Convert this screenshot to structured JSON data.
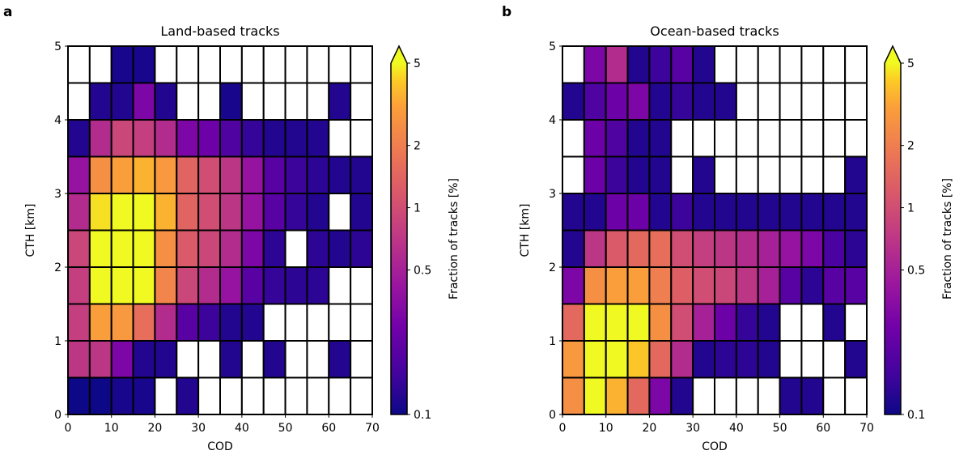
{
  "chart_data": [
    {
      "type": "heatmap",
      "panel_letter": "a",
      "title": "Land-based tracks",
      "xlabel": "COD",
      "ylabel": "CTH [km]",
      "xlim": [
        0,
        70
      ],
      "ylim": [
        0,
        5
      ],
      "x_ticks": [
        0,
        10,
        20,
        30,
        40,
        50,
        60,
        70
      ],
      "y_ticks": [
        0,
        1,
        2,
        3,
        4,
        5
      ],
      "x_bin_edges": [
        0,
        5,
        10,
        15,
        20,
        25,
        30,
        35,
        40,
        45,
        50,
        55,
        60,
        65,
        70
      ],
      "y_bin_edges": [
        0,
        0.5,
        1,
        1.5,
        2,
        2.5,
        3,
        3.5,
        4,
        4.5,
        5
      ],
      "empty_value": null,
      "colorbar": {
        "label": "Fraction of tracks [%]",
        "scale": "log",
        "range": [
          0.1,
          5
        ],
        "ticks": [
          0.1,
          0.5,
          1,
          2,
          5
        ],
        "extend": "max",
        "colormap": "plasma"
      },
      "values": [
        [
          0.1,
          0.1,
          0.11,
          0.11,
          null,
          0.12,
          null,
          null,
          null,
          null,
          null,
          null,
          null,
          null
        ],
        [
          0.7,
          0.7,
          0.3,
          0.12,
          0.12,
          null,
          null,
          0.12,
          null,
          0.12,
          null,
          null,
          0.12,
          null
        ],
        [
          0.8,
          3.0,
          2.8,
          1.6,
          0.6,
          0.2,
          0.15,
          0.12,
          0.12,
          null,
          null,
          null,
          null,
          null
        ],
        [
          0.8,
          5.5,
          7.0,
          7.0,
          2.2,
          0.9,
          0.6,
          0.4,
          0.2,
          0.14,
          0.13,
          0.13,
          null,
          null
        ],
        [
          0.9,
          5.0,
          6.0,
          5.0,
          2.5,
          1.2,
          0.9,
          0.6,
          0.3,
          0.13,
          null,
          0.13,
          0.12,
          0.13
        ],
        [
          0.6,
          4.5,
          6.0,
          6.0,
          3.5,
          1.4,
          1.0,
          0.7,
          0.4,
          0.2,
          0.14,
          0.12,
          null,
          0.12
        ],
        [
          0.4,
          2.5,
          3.0,
          3.5,
          2.8,
          1.4,
          1.0,
          0.7,
          0.4,
          0.2,
          0.15,
          0.13,
          0.12,
          0.12
        ],
        [
          0.12,
          0.6,
          0.9,
          0.8,
          0.6,
          0.3,
          0.25,
          0.18,
          0.14,
          0.12,
          0.12,
          0.12,
          null,
          null
        ],
        [
          null,
          0.12,
          0.12,
          0.3,
          0.12,
          null,
          null,
          0.11,
          null,
          null,
          null,
          null,
          0.12,
          null
        ],
        [
          null,
          null,
          0.11,
          0.11,
          null,
          null,
          null,
          null,
          null,
          null,
          null,
          null,
          null,
          null
        ]
      ]
    },
    {
      "type": "heatmap",
      "panel_letter": "b",
      "title": "Ocean-based tracks",
      "xlabel": "COD",
      "ylabel": "CTH [km]",
      "xlim": [
        0,
        70
      ],
      "ylim": [
        0,
        5
      ],
      "x_ticks": [
        0,
        10,
        20,
        30,
        40,
        50,
        60,
        70
      ],
      "y_ticks": [
        0,
        1,
        2,
        3,
        4,
        5
      ],
      "x_bin_edges": [
        0,
        5,
        10,
        15,
        20,
        25,
        30,
        35,
        40,
        45,
        50,
        55,
        60,
        65,
        70
      ],
      "y_bin_edges": [
        0,
        0.5,
        1,
        1.5,
        2,
        2.5,
        3,
        3.5,
        4,
        4.5,
        5
      ],
      "empty_value": null,
      "colorbar": {
        "label": "Fraction of tracks [%]",
        "scale": "log",
        "range": [
          0.1,
          5
        ],
        "ticks": [
          0.1,
          0.5,
          1,
          2,
          5
        ],
        "extend": "max",
        "colormap": "plasma"
      },
      "values": [
        [
          2.5,
          5.0,
          3.5,
          1.5,
          0.3,
          0.12,
          null,
          null,
          null,
          null,
          0.12,
          0.12,
          null,
          null
        ],
        [
          2.8,
          6.0,
          5.0,
          4.0,
          1.5,
          0.6,
          0.12,
          0.13,
          0.13,
          0.12,
          null,
          null,
          null,
          0.12
        ],
        [
          1.5,
          6.0,
          7.0,
          5.0,
          2.5,
          1.0,
          0.5,
          0.25,
          0.14,
          0.12,
          null,
          null,
          0.12,
          null
        ],
        [
          0.3,
          2.5,
          3.0,
          3.0,
          2.0,
          1.3,
          1.0,
          0.9,
          0.7,
          0.5,
          0.2,
          0.13,
          0.2,
          0.2
        ],
        [
          0.12,
          0.7,
          1.2,
          1.5,
          1.6,
          1.0,
          0.8,
          0.7,
          0.6,
          0.5,
          0.4,
          0.3,
          0.17,
          0.13
        ],
        [
          0.12,
          0.12,
          0.25,
          0.25,
          0.12,
          0.15,
          0.12,
          0.12,
          0.12,
          0.12,
          0.12,
          0.12,
          0.12,
          0.12
        ],
        [
          null,
          0.25,
          0.15,
          0.12,
          0.12,
          null,
          0.12,
          null,
          null,
          null,
          null,
          null,
          null,
          0.12
        ],
        [
          null,
          0.25,
          0.18,
          0.12,
          0.12,
          null,
          null,
          null,
          null,
          null,
          null,
          null,
          null,
          null
        ],
        [
          0.12,
          0.18,
          0.25,
          0.3,
          0.12,
          0.14,
          0.12,
          0.12,
          null,
          null,
          null,
          null,
          null,
          null
        ],
        [
          null,
          0.3,
          0.6,
          0.12,
          0.15,
          0.2,
          0.12,
          null,
          null,
          null,
          null,
          null,
          null,
          null
        ]
      ]
    }
  ]
}
